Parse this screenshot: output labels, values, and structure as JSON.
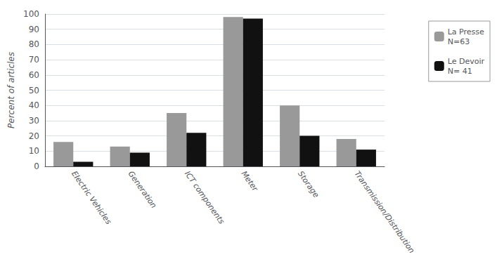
{
  "chart_data": {
    "type": "bar",
    "categories": [
      "Electric Vehicles",
      "Generation",
      "ICT components",
      "Meter",
      "Storage",
      "Transmission/Distribution"
    ],
    "series": [
      {
        "name": "La Presse\nN=63",
        "color": "#999999",
        "values": [
          16,
          13,
          35,
          98,
          40,
          18
        ]
      },
      {
        "name": "Le Devoir\nN= 41",
        "color": "#111111",
        "values": [
          3,
          9,
          22,
          97,
          20,
          11
        ]
      }
    ],
    "ylabel": "Percent of articles",
    "ylim": [
      0,
      100
    ],
    "yticks": [
      0,
      10,
      20,
      30,
      40,
      50,
      60,
      70,
      80,
      90,
      100
    ],
    "grid": true,
    "legend": "right"
  }
}
